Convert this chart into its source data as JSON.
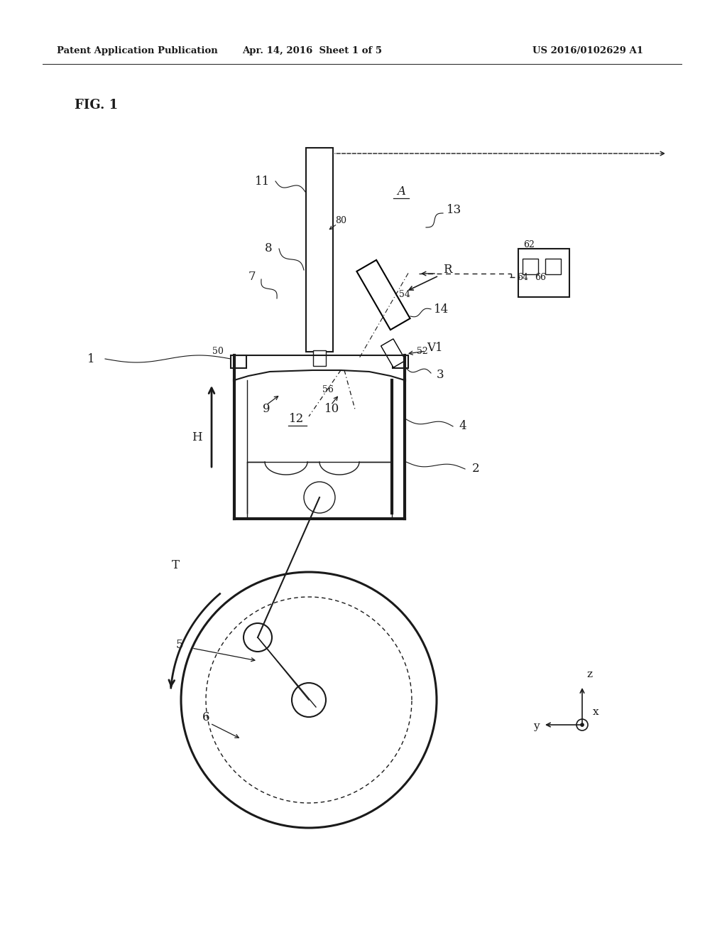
{
  "bg_color": "#ffffff",
  "dark": "#1a1a1a",
  "header_left": "Patent Application Publication",
  "header_mid": "Apr. 14, 2016  Sheet 1 of 5",
  "header_right": "US 2016/0102629 A1",
  "fig_label": "FIG. 1",
  "lw_thick": 2.2,
  "lw_main": 1.5,
  "lw_thin": 1.0
}
